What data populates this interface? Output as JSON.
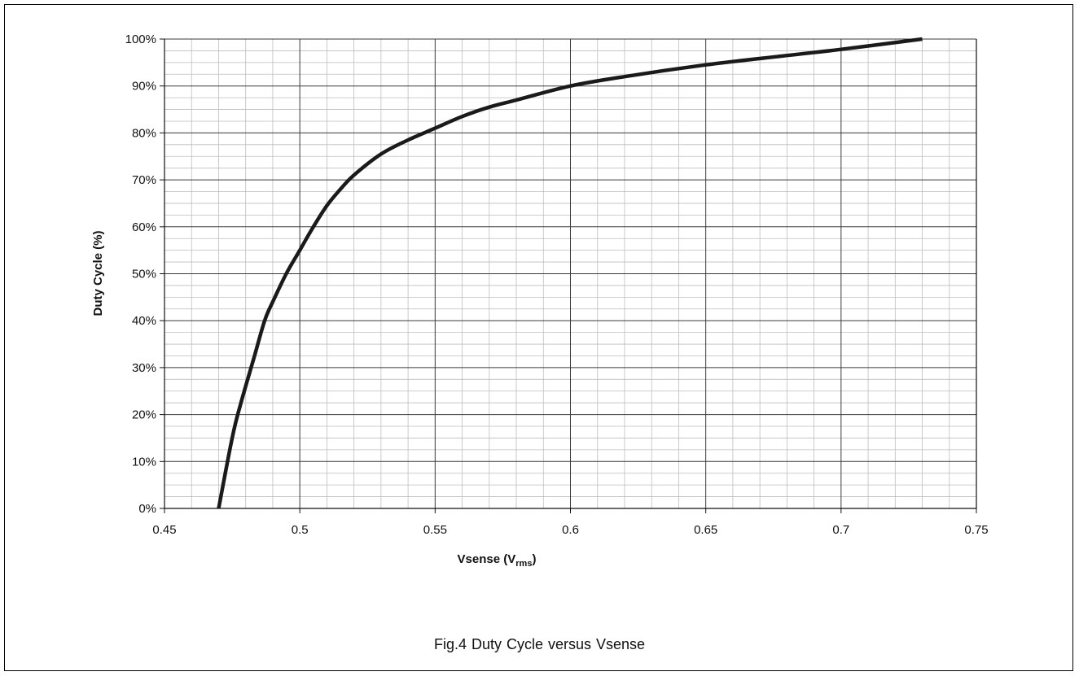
{
  "chart_data": {
    "type": "line",
    "title": "",
    "xlabel": "Vsense (V",
    "xlabel_sub": "rms",
    "xlabel_suffix": ")",
    "ylabel": "Duty Cycle (%)",
    "xlim": [
      0.45,
      0.75
    ],
    "ylim": [
      0,
      100
    ],
    "x_ticks": [
      "0.45",
      "0.5",
      "0.55",
      "0.6",
      "0.65",
      "0.7",
      "0.75"
    ],
    "y_ticks": [
      "0%",
      "10%",
      "20%",
      "30%",
      "40%",
      "50%",
      "60%",
      "70%",
      "80%",
      "90%",
      "100%"
    ],
    "grid": true,
    "series": [
      {
        "x": [
          0.47,
          0.475,
          0.478,
          0.483,
          0.487,
          0.49,
          0.495,
          0.5,
          0.505,
          0.51,
          0.515,
          0.52,
          0.53,
          0.54,
          0.55,
          0.56,
          0.57,
          0.58,
          0.6,
          0.62,
          0.65,
          0.68,
          0.7,
          0.73
        ],
        "y": [
          0,
          15,
          22,
          32,
          40,
          44,
          50,
          55,
          60,
          64.5,
          68,
          71,
          75.5,
          78.5,
          81,
          83.5,
          85.5,
          87,
          90,
          92,
          94.5,
          96.5,
          97.8,
          100
        ]
      }
    ],
    "color": "#1a1a1a"
  },
  "caption": "Fig.4  Duty Cycle versus Vsense"
}
